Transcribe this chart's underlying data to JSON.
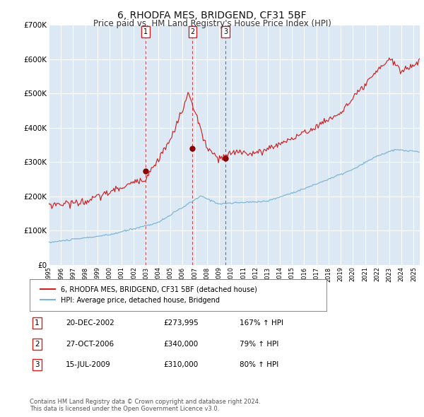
{
  "title": "6, RHODFA MES, BRIDGEND, CF31 5BF",
  "subtitle": "Price paid vs. HM Land Registry's House Price Index (HPI)",
  "title_fontsize": 10,
  "subtitle_fontsize": 8.5,
  "plot_bg_color": "#dce9f5",
  "hpi_color": "#7ab3d4",
  "price_color": "#cc2222",
  "dot_color": "#8b0000",
  "vline_color": "#cc2222",
  "grid_color": "#ffffff",
  "purchases": [
    {
      "date_num": 2002.97,
      "price": 273995,
      "label": "1"
    },
    {
      "date_num": 2006.82,
      "price": 340000,
      "label": "2"
    },
    {
      "date_num": 2009.54,
      "price": 310000,
      "label": "3"
    }
  ],
  "table_rows": [
    [
      "1",
      "20-DEC-2002",
      "£273,995",
      "167% ↑ HPI"
    ],
    [
      "2",
      "27-OCT-2006",
      "£340,000",
      "79% ↑ HPI"
    ],
    [
      "3",
      "15-JUL-2009",
      "£310,000",
      "80% ↑ HPI"
    ]
  ],
  "legend_label_red": "6, RHODFA MES, BRIDGEND, CF31 5BF (detached house)",
  "legend_label_blue": "HPI: Average price, detached house, Bridgend",
  "footnote": "Contains HM Land Registry data © Crown copyright and database right 2024.\nThis data is licensed under the Open Government Licence v3.0.",
  "xmin": 1995.0,
  "xmax": 2025.5,
  "ylim": [
    0,
    700000
  ],
  "yticks": [
    0,
    100000,
    200000,
    300000,
    400000,
    500000,
    600000,
    700000
  ],
  "ytick_labels": [
    "£0",
    "£100K",
    "£200K",
    "£300K",
    "£400K",
    "£500K",
    "£600K",
    "£700K"
  ]
}
